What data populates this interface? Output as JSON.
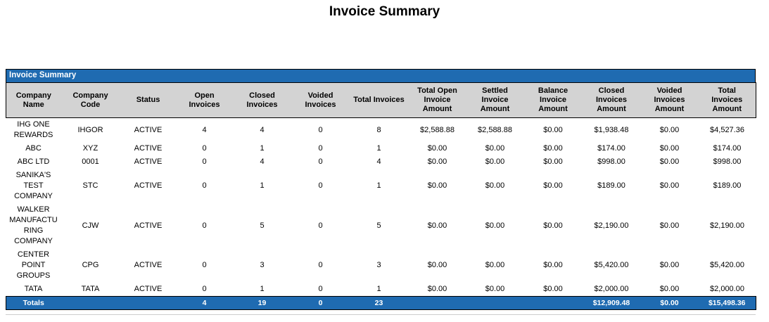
{
  "page_title": "Invoice Summary",
  "colors": {
    "accent_blue": "#1F6BB1",
    "header_gray": "#D3D3D3"
  },
  "panel": {
    "title": "Invoice Summary"
  },
  "table": {
    "column_keys": [
      "company-name",
      "company-code",
      "status",
      "open-invoices",
      "closed-invoices",
      "voided-invoices",
      "total-invoices",
      "total-open-invoice-amount",
      "settled-invoice-amount",
      "balance-invoice-amount",
      "closed-invoices-amount",
      "voided-invoices-amount",
      "total-invoices-amount"
    ],
    "columns": [
      {
        "label": "Company\nName"
      },
      {
        "label": "Company\nCode"
      },
      {
        "label": "Status"
      },
      {
        "label": "Open\nInvoices"
      },
      {
        "label": "Closed\nInvoices"
      },
      {
        "label": "Voided\nInvoices"
      },
      {
        "label": "Total Invoices"
      },
      {
        "label": "Total Open\nInvoice\nAmount"
      },
      {
        "label": "Settled\nInvoice\nAmount"
      },
      {
        "label": "Balance\nInvoice\nAmount"
      },
      {
        "label": "Closed\nInvoices\nAmount"
      },
      {
        "label": "Voided\nInvoices\nAmount"
      },
      {
        "label": "Total\nInvoices\nAmount"
      }
    ],
    "rows": [
      [
        "IHG ONE\nREWARDS",
        "IHGOR",
        "ACTIVE",
        "4",
        "4",
        "0",
        "8",
        "$2,588.88",
        "$2,588.88",
        "$0.00",
        "$1,938.48",
        "$0.00",
        "$4,527.36"
      ],
      [
        "ABC",
        "XYZ",
        "ACTIVE",
        "0",
        "1",
        "0",
        "1",
        "$0.00",
        "$0.00",
        "$0.00",
        "$174.00",
        "$0.00",
        "$174.00"
      ],
      [
        "ABC LTD",
        "0001",
        "ACTIVE",
        "0",
        "4",
        "0",
        "4",
        "$0.00",
        "$0.00",
        "$0.00",
        "$998.00",
        "$0.00",
        "$998.00"
      ],
      [
        "SANIKA'S\nTEST\nCOMPANY",
        "STC",
        "ACTIVE",
        "0",
        "1",
        "0",
        "1",
        "$0.00",
        "$0.00",
        "$0.00",
        "$189.00",
        "$0.00",
        "$189.00"
      ],
      [
        "WALKER\nMANUFACTU\nRING\nCOMPANY",
        "CJW",
        "ACTIVE",
        "0",
        "5",
        "0",
        "5",
        "$0.00",
        "$0.00",
        "$0.00",
        "$2,190.00",
        "$0.00",
        "$2,190.00"
      ],
      [
        "CENTER\nPOINT\nGROUPS",
        "CPG",
        "ACTIVE",
        "0",
        "3",
        "0",
        "3",
        "$0.00",
        "$0.00",
        "$0.00",
        "$5,420.00",
        "$0.00",
        "$5,420.00"
      ],
      [
        "TATA",
        "TATA",
        "ACTIVE",
        "0",
        "1",
        "0",
        "1",
        "$0.00",
        "$0.00",
        "$0.00",
        "$2,000.00",
        "$0.00",
        "$2,000.00"
      ]
    ],
    "totals": [
      "Totals",
      "",
      "",
      "4",
      "19",
      "0",
      "23",
      "",
      "",
      "",
      "$12,909.48",
      "$0.00",
      "$15,498.36"
    ]
  }
}
